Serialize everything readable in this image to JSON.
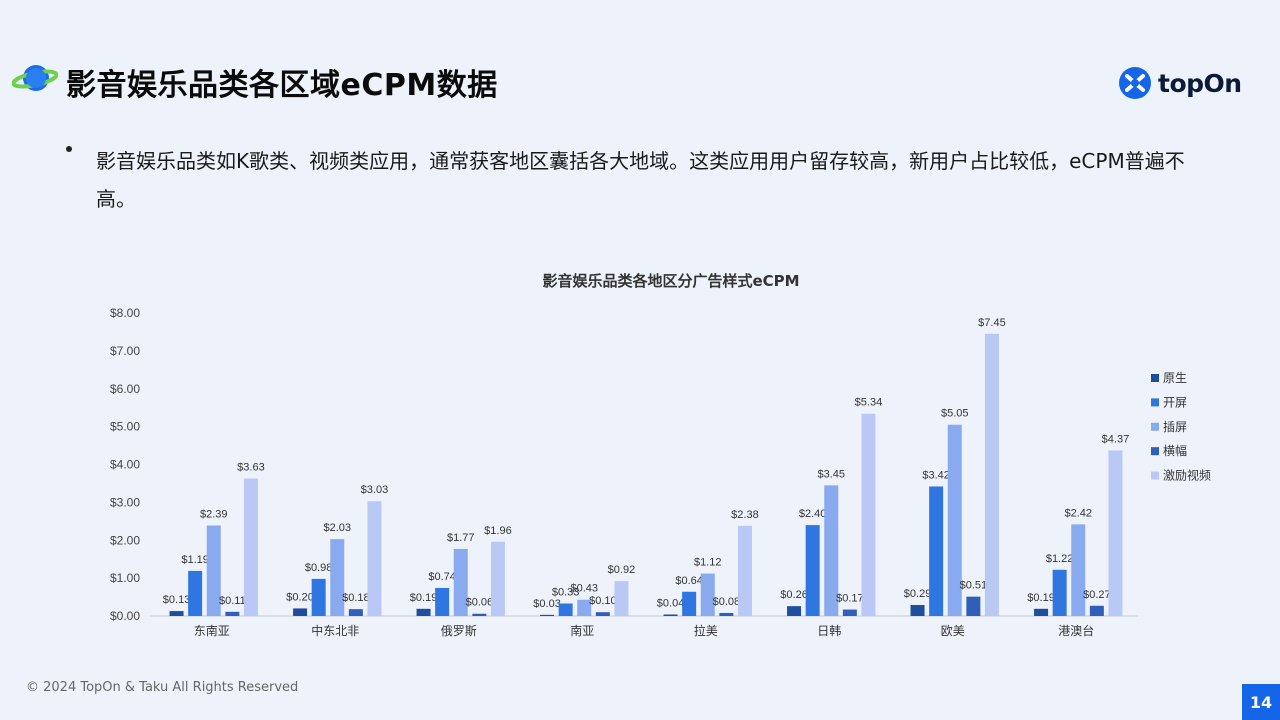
{
  "header": {
    "title": "影音娱乐品类各区域eCPM数据",
    "brand": "topOn"
  },
  "bullet": {
    "text": "影音娱乐品类如K歌类、视频类应用，通常获客地区囊括各大地域。这类应用用户留存较高，新用户占比较低，eCPM普遍不高。"
  },
  "footer": {
    "copyright": "© 2024 TopOn & Taku All Rights Reserved",
    "page_number": "14"
  },
  "colors": {
    "native": "#1f4e9c",
    "splash": "#2f76e0",
    "interstitial": "#8aaaf0",
    "banner": "#2f5fb8",
    "rewarded": "#b9c8f5",
    "page_num_bg": "#1565e8"
  },
  "chart_data": {
    "type": "bar",
    "title": "影音娱乐品类各地区分广告样式eCPM",
    "xlabel": "",
    "ylabel": "",
    "ylim": [
      0,
      8
    ],
    "yticks": [
      "$0.00",
      "$1.00",
      "$2.00",
      "$3.00",
      "$4.00",
      "$5.00",
      "$6.00",
      "$7.00",
      "$8.00"
    ],
    "legend_position": "right",
    "grid": false,
    "categories": [
      "东南亚",
      "中东北非",
      "俄罗斯",
      "南亚",
      "拉美",
      "日韩",
      "欧美",
      "港澳台"
    ],
    "series": [
      {
        "name": "原生",
        "color": "#1f4e9c",
        "values": [
          0.13,
          0.2,
          0.19,
          0.03,
          0.04,
          0.26,
          0.29,
          0.19
        ],
        "labels": [
          "$0.13",
          "$0.20",
          "$0.19",
          "$0.03",
          "$0.04",
          "$0.26",
          "$0.29",
          "$0.19"
        ]
      },
      {
        "name": "开屏",
        "color": "#2f76e0",
        "values": [
          1.19,
          0.98,
          0.74,
          0.33,
          0.64,
          2.4,
          3.42,
          1.22
        ],
        "labels": [
          "$1.19",
          "$0.98",
          "$0.74",
          "$0.33",
          "$0.64",
          "$2.40",
          "$3.42",
          "$1.22"
        ]
      },
      {
        "name": "插屏",
        "color": "#8aaaf0",
        "values": [
          2.39,
          2.03,
          1.77,
          0.43,
          1.12,
          3.45,
          5.05,
          2.42
        ],
        "labels": [
          "$2.39",
          "$2.03",
          "$1.77",
          "$0.43",
          "$1.12",
          "$3.45",
          "$5.05",
          "$2.42"
        ]
      },
      {
        "name": "横幅",
        "color": "#2f5fb8",
        "values": [
          0.11,
          0.18,
          0.06,
          0.1,
          0.08,
          0.17,
          0.51,
          0.27
        ],
        "labels": [
          "$0.11",
          "$0.18",
          "$0.06",
          "$0.10",
          "$0.08",
          "$0.17",
          "$0.51",
          "$0.27"
        ]
      },
      {
        "name": "激励视频",
        "color": "#b9c8f5",
        "values": [
          3.63,
          3.03,
          1.96,
          0.92,
          2.38,
          5.34,
          7.45,
          4.37
        ],
        "labels": [
          "$3.63",
          "$3.03",
          "$1.96",
          "$0.92",
          "$2.38",
          "$5.34",
          "$7.45",
          "$4.37"
        ]
      }
    ]
  }
}
